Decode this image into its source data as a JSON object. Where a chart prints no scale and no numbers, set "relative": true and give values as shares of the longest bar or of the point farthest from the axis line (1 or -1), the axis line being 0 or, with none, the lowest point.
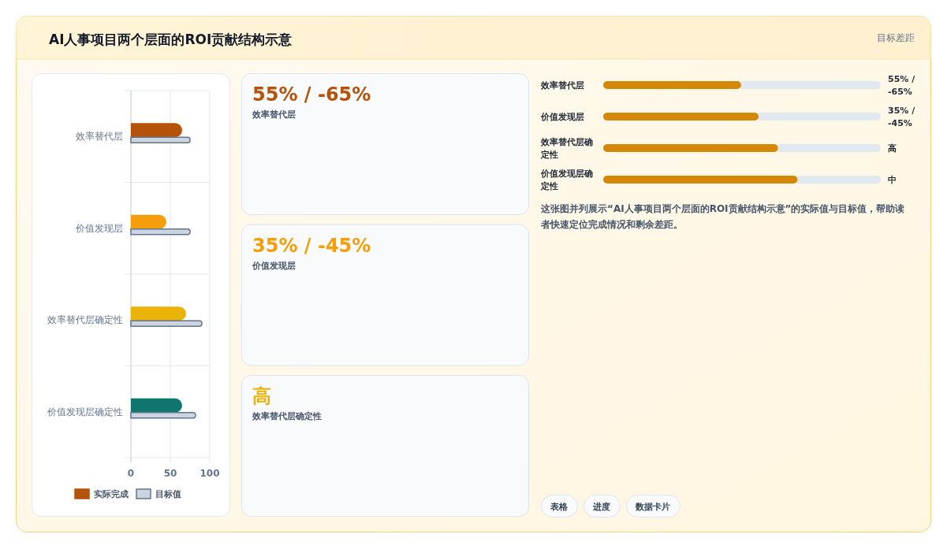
{
  "chart_data": [
    {
      "type": "other",
      "title": "AI人事项目两个层面的ROI贡献结构示意",
      "annotations": [
        "目标差距"
      ]
    },
    {
      "type": "bar",
      "orientation": "horizontal",
      "categories": [
        "效率替代层",
        "价值发现层",
        "效率替代层确定性",
        "价值发现层确定性"
      ],
      "series": [
        {
          "name": "实际完成",
          "colors": [
            "#b45309",
            "#f59e0b",
            "#eab308",
            "#0f766e"
          ],
          "values": [
            65,
            45,
            70,
            65
          ]
        },
        {
          "name": "目标值",
          "color": "#cbd5e1",
          "values": [
            75,
            75,
            90,
            82
          ]
        }
      ],
      "xlim": [
        0,
        100
      ],
      "xticks": [
        0,
        50,
        100
      ],
      "grid": true,
      "legend": "bottom"
    },
    {
      "type": "other",
      "colors": [
        "#b45309",
        "#f59e0b",
        "#eab308"
      ],
      "annotations": [
        "55% / -65%",
        "效率替代层",
        "35% / -45%",
        "价值发现层",
        "高",
        "效率替代层确定性"
      ]
    },
    {
      "type": "bar",
      "orientation": "horizontal",
      "relative": true,
      "categories": [
        "效率替代层",
        "价值发现层",
        "效率替代层确定性",
        "价值发现层确定性"
      ],
      "series": [
        {
          "color": "#d4880a",
          "values": [
            0.71,
            0.8,
            0.9,
            1
          ]
        }
      ],
      "value_labels": [
        "55% / -65%",
        "35% / -45%",
        "高",
        "中"
      ],
      "annotations": [
        "这张图并列展示“AI人事项目两个层面的ROI贡献结构示意”的实际值与目标值，帮助读者快速定位完成情况和剩余差距。",
        "表格",
        "进度",
        "数据卡片"
      ]
    }
  ]
}
